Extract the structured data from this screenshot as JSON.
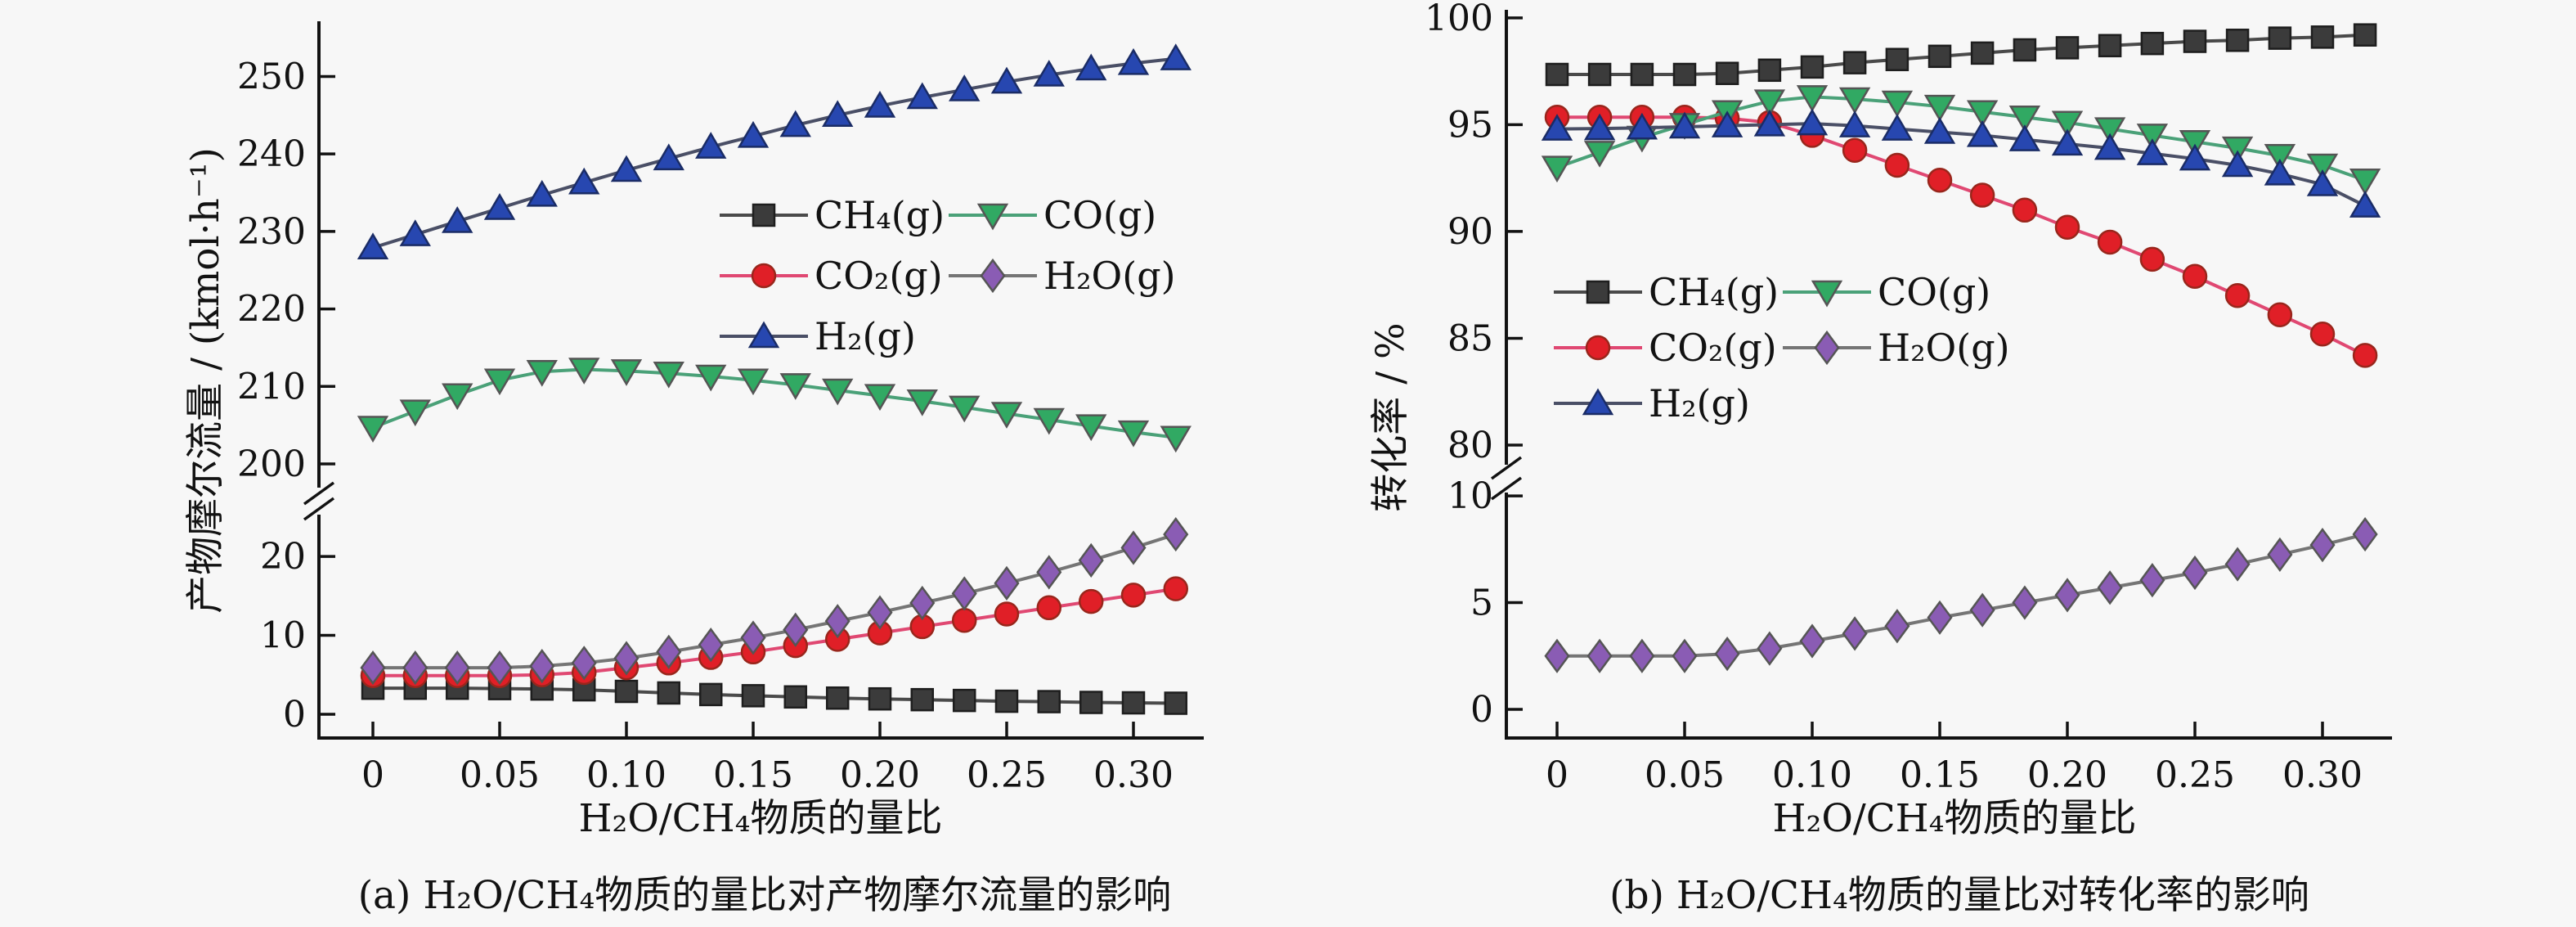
{
  "page": {
    "background": "#f7f7f7",
    "text_color": "#121212"
  },
  "chart_data": [
    {
      "id": "a",
      "type": "line",
      "caption": "(a) H₂O/CH₄物质的量比对产物摩尔流量的影响",
      "xlabel": "H₂O/CH₄物质的量比",
      "ylabel": "产物摩尔流量 / (kmol·h⁻¹)",
      "x_range": [
        0,
        0.317
      ],
      "x": [
        0,
        0.0167,
        0.0333,
        0.05,
        0.0667,
        0.0833,
        0.1,
        0.1167,
        0.1333,
        0.15,
        0.1667,
        0.1833,
        0.2,
        0.2167,
        0.2333,
        0.25,
        0.2667,
        0.2833,
        0.3,
        0.3167
      ],
      "x_ticks": [
        {
          "v": 0,
          "label": "0"
        },
        {
          "v": 0.05,
          "label": "0.05"
        },
        {
          "v": 0.1,
          "label": "0.10"
        },
        {
          "v": 0.15,
          "label": "0.15"
        },
        {
          "v": 0.2,
          "label": "0.20"
        },
        {
          "v": 0.25,
          "label": "0.25"
        },
        {
          "v": 0.3,
          "label": "0.30"
        }
      ],
      "y_axis": {
        "broken": true,
        "sections": [
          {
            "id": "upper",
            "range": [
              200,
              256.7
            ],
            "ticks": [
              {
                "v": 200,
                "label": "200"
              },
              {
                "v": 210,
                "label": "210"
              },
              {
                "v": 220,
                "label": "220"
              },
              {
                "v": 230,
                "label": "230"
              },
              {
                "v": 240,
                "label": "240"
              },
              {
                "v": 250,
                "label": "250"
              }
            ]
          },
          {
            "id": "lower",
            "range": [
              0,
              25.4
            ],
            "ticks": [
              {
                "v": 0,
                "label": "0"
              },
              {
                "v": 10,
                "label": "10"
              },
              {
                "v": 20,
                "label": "20"
              }
            ]
          }
        ]
      },
      "series": [
        {
          "key": "ch4",
          "name": "CH₄(g)",
          "marker": "square",
          "marker_color": "#3b3b3b",
          "edge_color": "#1e1e1e",
          "line_color": "#4a4a4a",
          "values": [
            3.3,
            3.3,
            3.3,
            3.25,
            3.2,
            3.1,
            2.9,
            2.7,
            2.5,
            2.35,
            2.2,
            2.05,
            1.95,
            1.85,
            1.75,
            1.65,
            1.6,
            1.5,
            1.45,
            1.4
          ]
        },
        {
          "key": "co2",
          "name": "CO₂(g)",
          "marker": "circle",
          "marker_color": "#e01f27",
          "edge_color": "#99261c",
          "line_color": "#e04872",
          "values": [
            4.9,
            4.9,
            4.9,
            4.9,
            5.0,
            5.3,
            5.9,
            6.5,
            7.2,
            7.9,
            8.7,
            9.5,
            10.3,
            11.1,
            11.9,
            12.7,
            13.5,
            14.3,
            15.1,
            15.9
          ]
        },
        {
          "key": "h2o",
          "name": "H₂O(g)",
          "marker": "diamond",
          "marker_color": "#8a5cb4",
          "edge_color": "#555555",
          "line_color": "#757575",
          "values": [
            5.9,
            5.9,
            5.9,
            5.9,
            6.1,
            6.5,
            7.1,
            7.9,
            8.8,
            9.7,
            10.7,
            11.8,
            12.9,
            14.1,
            15.3,
            16.6,
            18.0,
            19.5,
            21.1,
            22.8
          ]
        },
        {
          "key": "co",
          "name": "CO(g)",
          "marker": "triangle-down",
          "marker_color": "#31a963",
          "edge_color": "#555555",
          "line_color": "#4aa178",
          "values": [
            204.7,
            206.8,
            208.9,
            210.8,
            211.9,
            212.2,
            212.0,
            211.7,
            211.3,
            210.8,
            210.2,
            209.5,
            208.8,
            208.1,
            207.3,
            206.5,
            205.7,
            204.9,
            204.1,
            203.4
          ]
        },
        {
          "key": "h2",
          "name": "H₂(g)",
          "marker": "triangle-up",
          "marker_color": "#2747b0",
          "edge_color": "#1a2c66",
          "line_color": "#4a4f66",
          "values": [
            227.9,
            229.6,
            231.3,
            233.0,
            234.7,
            236.3,
            237.9,
            239.4,
            240.9,
            242.3,
            243.7,
            245.0,
            246.2,
            247.3,
            248.3,
            249.3,
            250.2,
            251.0,
            251.7,
            252.3
          ]
        }
      ],
      "legend": {
        "position": "inside-right-upper",
        "order": [
          "ch4",
          "co",
          "co2",
          "h2o",
          "h2"
        ]
      }
    },
    {
      "id": "b",
      "type": "line",
      "caption": "(b) H₂O/CH₄物质的量比对转化率的影响",
      "xlabel": "H₂O/CH₄物质的量比",
      "ylabel": "转化率 / %",
      "x_range": [
        0,
        0.317
      ],
      "x": [
        0,
        0.0167,
        0.0333,
        0.05,
        0.0667,
        0.0833,
        0.1,
        0.1167,
        0.1333,
        0.15,
        0.1667,
        0.1833,
        0.2,
        0.2167,
        0.2333,
        0.25,
        0.2667,
        0.2833,
        0.3,
        0.3167
      ],
      "x_ticks": [
        {
          "v": 0,
          "label": "0"
        },
        {
          "v": 0.05,
          "label": "0.05"
        },
        {
          "v": 0.1,
          "label": "0.10"
        },
        {
          "v": 0.15,
          "label": "0.15"
        },
        {
          "v": 0.2,
          "label": "0.20"
        },
        {
          "v": 0.25,
          "label": "0.25"
        },
        {
          "v": 0.3,
          "label": "0.30"
        }
      ],
      "y_axis": {
        "broken": true,
        "sections": [
          {
            "id": "upper",
            "range": [
              80,
              100.3
            ],
            "ticks": [
              {
                "v": 80,
                "label": "80"
              },
              {
                "v": 85,
                "label": "85"
              },
              {
                "v": 90,
                "label": "90"
              },
              {
                "v": 95,
                "label": "95"
              },
              {
                "v": 100,
                "label": "100"
              }
            ]
          },
          {
            "id": "lower",
            "range": [
              0,
              11
            ],
            "ticks": [
              {
                "v": 0,
                "label": "0"
              },
              {
                "v": 5,
                "label": "5"
              },
              {
                "v": 10,
                "label": "10"
              }
            ]
          }
        ]
      },
      "series": [
        {
          "key": "ch4",
          "name": "CH₄(g)",
          "marker": "square",
          "marker_color": "#3b3b3b",
          "edge_color": "#1e1e1e",
          "line_color": "#4a4a4a",
          "values": [
            97.35,
            97.35,
            97.35,
            97.35,
            97.4,
            97.55,
            97.7,
            97.9,
            98.05,
            98.2,
            98.35,
            98.5,
            98.6,
            98.7,
            98.8,
            98.9,
            98.95,
            99.05,
            99.1,
            99.2
          ]
        },
        {
          "key": "co2",
          "name": "CO₂(g)",
          "marker": "circle",
          "marker_color": "#e01f27",
          "edge_color": "#99261c",
          "line_color": "#e04872",
          "values": [
            95.35,
            95.35,
            95.35,
            95.35,
            95.3,
            95.1,
            94.5,
            93.8,
            93.1,
            92.4,
            91.7,
            91.0,
            90.2,
            89.5,
            88.7,
            87.9,
            87.0,
            86.1,
            85.2,
            84.2
          ]
        },
        {
          "key": "co",
          "name": "CO(g)",
          "marker": "triangle-down",
          "marker_color": "#31a963",
          "edge_color": "#555555",
          "line_color": "#4aa178",
          "values": [
            93.0,
            93.7,
            94.4,
            95.0,
            95.6,
            96.1,
            96.3,
            96.2,
            96.05,
            95.85,
            95.6,
            95.35,
            95.1,
            94.8,
            94.5,
            94.2,
            93.9,
            93.55,
            93.1,
            92.4
          ]
        },
        {
          "key": "h2",
          "name": "H₂(g)",
          "marker": "triangle-up",
          "marker_color": "#2747b0",
          "edge_color": "#1a2c66",
          "line_color": "#4a4f66",
          "values": [
            94.8,
            94.82,
            94.85,
            94.9,
            94.95,
            95.0,
            95.05,
            94.95,
            94.8,
            94.65,
            94.5,
            94.3,
            94.1,
            93.9,
            93.65,
            93.4,
            93.1,
            92.7,
            92.2,
            91.2
          ]
        },
        {
          "key": "h2o",
          "name": "H₂O(g)",
          "marker": "diamond",
          "marker_color": "#8a5cb4",
          "edge_color": "#555555",
          "line_color": "#757575",
          "values": [
            2.5,
            2.5,
            2.5,
            2.5,
            2.6,
            2.85,
            3.2,
            3.55,
            3.9,
            4.3,
            4.65,
            5.0,
            5.35,
            5.7,
            6.05,
            6.4,
            6.8,
            7.25,
            7.7,
            8.2
          ]
        }
      ],
      "legend": {
        "position": "inside-middle",
        "order": [
          "ch4",
          "co",
          "co2",
          "h2o",
          "h2"
        ]
      }
    }
  ]
}
